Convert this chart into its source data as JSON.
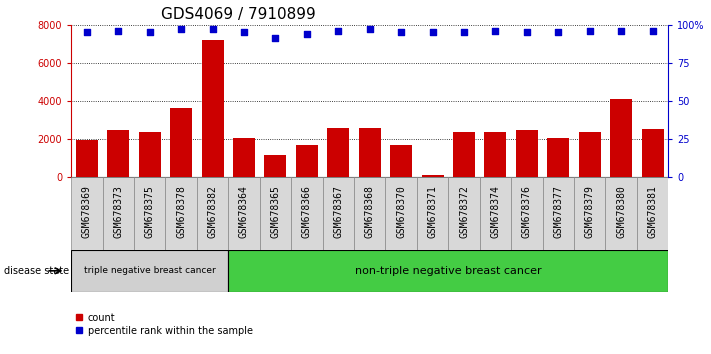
{
  "title": "GDS4069 / 7910899",
  "samples": [
    "GSM678369",
    "GSM678373",
    "GSM678375",
    "GSM678378",
    "GSM678382",
    "GSM678364",
    "GSM678365",
    "GSM678366",
    "GSM678367",
    "GSM678368",
    "GSM678370",
    "GSM678371",
    "GSM678372",
    "GSM678374",
    "GSM678376",
    "GSM678377",
    "GSM678379",
    "GSM678380",
    "GSM678381"
  ],
  "counts": [
    1950,
    2450,
    2350,
    3650,
    7200,
    2050,
    1150,
    1700,
    2600,
    2600,
    1700,
    100,
    2350,
    2350,
    2450,
    2050,
    2350,
    4100,
    2500
  ],
  "percentile_ranks": [
    95,
    96,
    95,
    97,
    97,
    95,
    91,
    94,
    96,
    97,
    95,
    95,
    95,
    96,
    95,
    95,
    96,
    96,
    96
  ],
  "bar_color": "#cc0000",
  "dot_color": "#0000cc",
  "ylim_left": [
    0,
    8000
  ],
  "ylim_right": [
    0,
    100
  ],
  "yticks_left": [
    0,
    2000,
    4000,
    6000,
    8000
  ],
  "yticks_right": [
    0,
    25,
    50,
    75,
    100
  ],
  "ytick_labels_right": [
    "0",
    "25",
    "50",
    "75",
    "100%"
  ],
  "group1_count": 5,
  "group1_label": "triple negative breast cancer",
  "group2_label": "non-triple negative breast cancer",
  "disease_state_label": "disease state",
  "legend_count_label": "count",
  "legend_percentile_label": "percentile rank within the sample",
  "bg_color": "#ffffff",
  "tick_box_color": "#d8d8d8",
  "group_color1": "#d0d0d0",
  "group_color2": "#44cc44",
  "title_fontsize": 11,
  "tick_fontsize": 7,
  "axis_color_left": "#cc0000",
  "axis_color_right": "#0000cc"
}
